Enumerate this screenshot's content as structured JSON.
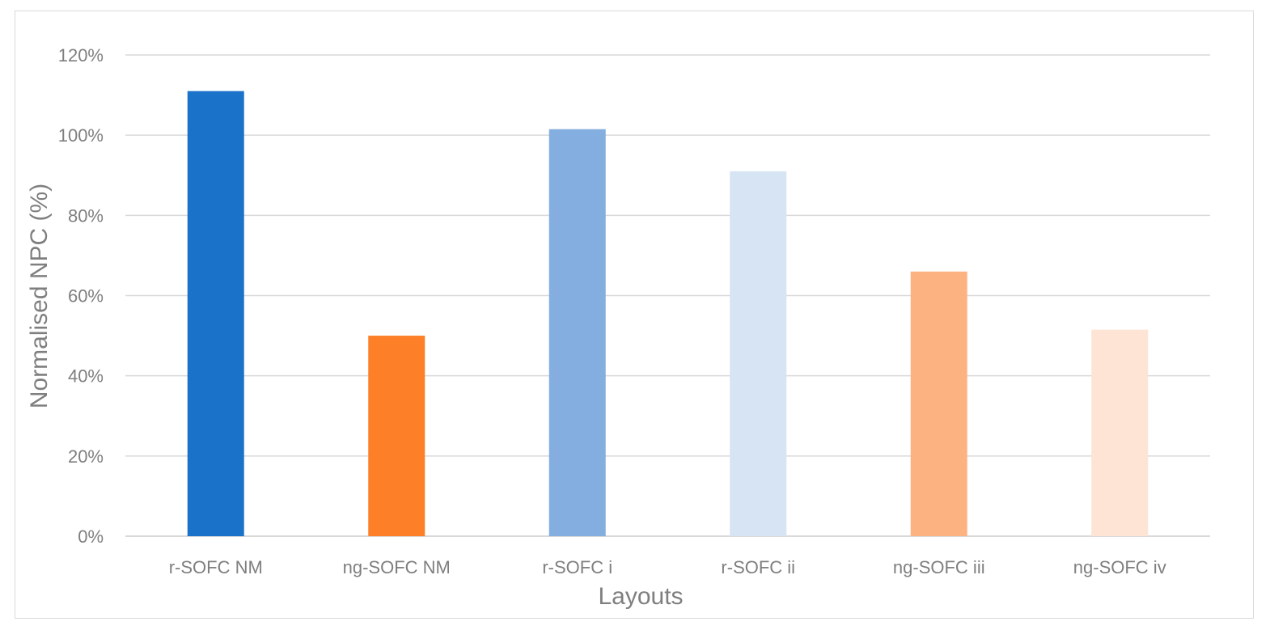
{
  "chart_data": {
    "type": "bar",
    "categories": [
      "r-SOFC NM",
      "ng-SOFC NM",
      "r-SOFC i",
      "r-SOFC ii",
      "ng-SOFC iii",
      "ng-SOFC iv"
    ],
    "values": [
      111,
      50,
      101.5,
      91,
      66,
      51.5
    ],
    "colors": [
      "#1a73c9",
      "#fd7f28",
      "#85aee0",
      "#d7e4f3",
      "#fdb282",
      "#fde4d5"
    ],
    "xlabel": "Layouts",
    "ylabel": "Normalised NPC (%)",
    "ylim": [
      0,
      120
    ],
    "yticks": [
      0,
      20,
      40,
      60,
      80,
      100,
      120
    ],
    "ytick_labels": [
      "0%",
      "20%",
      "40%",
      "60%",
      "80%",
      "100%",
      "120%"
    ],
    "grid": true,
    "gridline_color": "#d9d9d9",
    "axis_text_color": "#7f7f7f"
  }
}
